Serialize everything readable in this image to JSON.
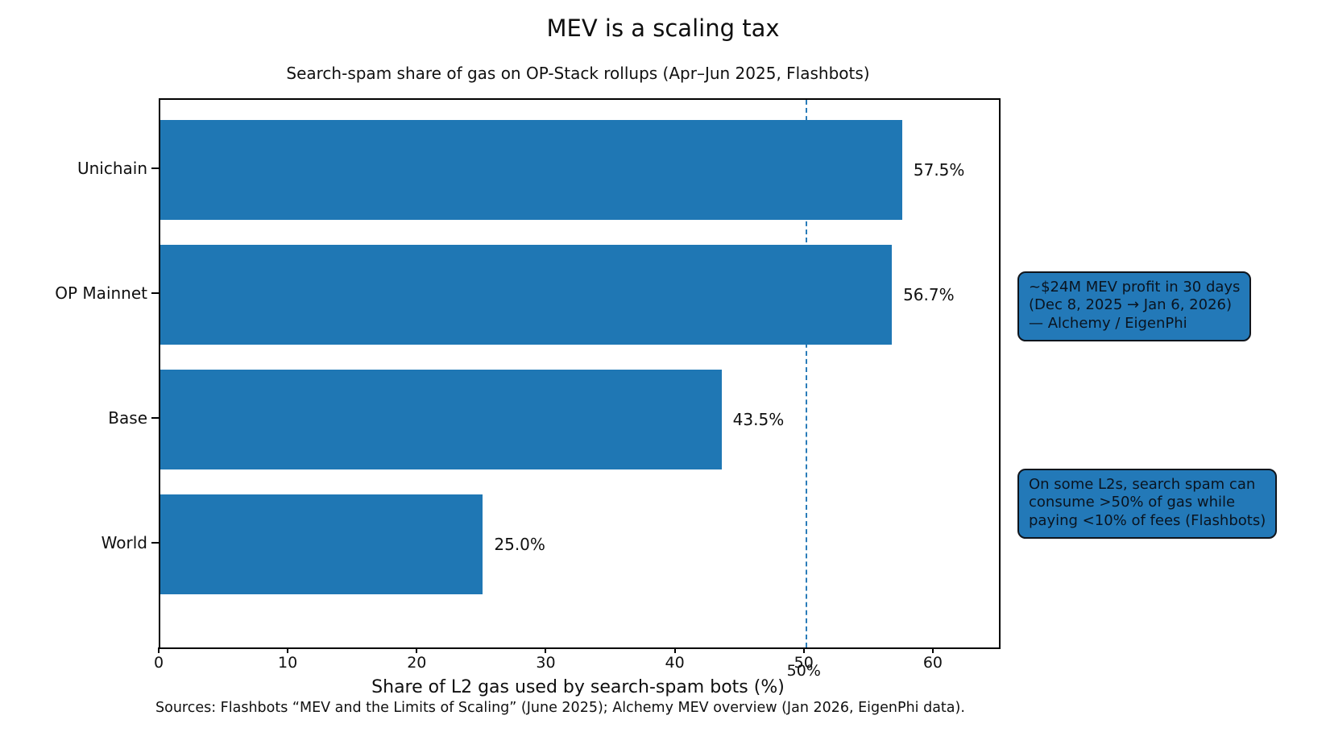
{
  "figure": {
    "title": "MEV is a scaling tax",
    "subtitle": "Search-spam share of gas on OP-Stack rollups (Apr–Jun 2025, Flashbots)",
    "source_note": "Sources: Flashbots “MEV and the Limits of Scaling” (June 2025); Alchemy MEV overview (Jan 2026, EigenPhi data)."
  },
  "chart_data": {
    "type": "bar",
    "orientation": "horizontal",
    "title": "MEV is a scaling tax",
    "subtitle": "Search-spam share of gas on OP-Stack rollups (Apr–Jun 2025, Flashbots)",
    "categories": [
      "Unichain",
      "OP Mainnet",
      "Base",
      "World"
    ],
    "values": [
      57.5,
      56.7,
      43.5,
      25.0
    ],
    "value_labels": [
      "57.5%",
      "56.7%",
      "43.5%",
      "25.0%"
    ],
    "xlabel": "Share of L2 gas used by search-spam bots (%)",
    "ylabel": "",
    "xlim": [
      0,
      65
    ],
    "xticks": [
      0,
      10,
      20,
      30,
      40,
      50,
      60
    ],
    "grid": false,
    "legend": "none",
    "bar_color": "#1f77b4",
    "axis_color": "#000000",
    "reference_line": {
      "x": 50,
      "label": "50%",
      "style": "dashed",
      "color": "#2a7cb9"
    },
    "annotations": [
      {
        "text": "~$24M MEV profit in 30 days\n(Dec 8, 2025 → Jan 6, 2026)\n— Alchemy / EigenPhi",
        "fill": "#2379b8"
      },
      {
        "text": "On some L2s, search spam can\nconsume >50% of gas while\npaying <10% of fees (Flashbots)",
        "fill": "#2379b8"
      }
    ]
  }
}
